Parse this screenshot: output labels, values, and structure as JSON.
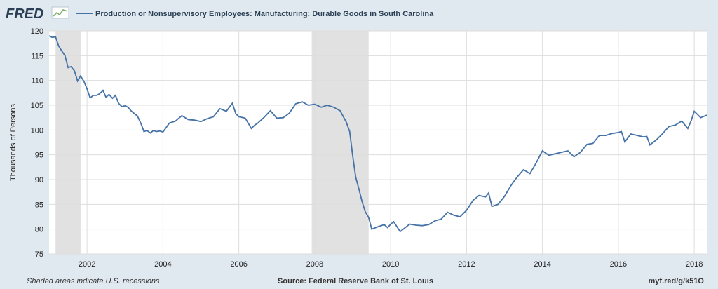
{
  "header": {
    "logo": "FRED",
    "series_title": "Production or Nonsupervisory Employees: Manufacturing: Durable Goods in South Carolina"
  },
  "colors": {
    "line": "#4572a7",
    "recession": "#e1e1e1",
    "background": "#e1e9f0",
    "plot_bg": "#ffffff",
    "grid": "#dddddd"
  },
  "footer": {
    "left": "Shaded areas indicate U.S. recessions",
    "center": "Source: Federal Reserve Bank of St. Louis",
    "right": "myf.red/g/k51O"
  },
  "chart_data": {
    "type": "line",
    "title": "Production or Nonsupervisory Employees: Manufacturing: Durable Goods in South Carolina",
    "xlabel": "",
    "ylabel": "Thousands of Persons",
    "xlim": [
      2001.0,
      2018.33
    ],
    "ylim": [
      75,
      120
    ],
    "yticks": [
      75,
      80,
      85,
      90,
      95,
      100,
      105,
      110,
      115,
      120
    ],
    "xticks": [
      2002,
      2004,
      2006,
      2008,
      2010,
      2012,
      2014,
      2016,
      2018
    ],
    "grid": true,
    "recessions": [
      [
        2001.17,
        2001.83
      ],
      [
        2007.92,
        2009.42
      ]
    ],
    "series": [
      {
        "x": [
          2001.0,
          2001.08,
          2001.17,
          2001.25,
          2001.33,
          2001.42,
          2001.5,
          2001.58,
          2001.67,
          2001.75,
          2001.83,
          2001.92,
          2002.0,
          2002.08,
          2002.17,
          2002.25,
          2002.33,
          2002.42,
          2002.5,
          2002.58,
          2002.67,
          2002.75,
          2002.83,
          2002.92,
          2003.0,
          2003.08,
          2003.17,
          2003.25,
          2003.33,
          2003.42,
          2003.5,
          2003.58,
          2003.67,
          2003.75,
          2003.83,
          2003.92,
          2004.0,
          2004.17,
          2004.33,
          2004.5,
          2004.67,
          2004.83,
          2005.0,
          2005.17,
          2005.33,
          2005.5,
          2005.67,
          2005.83,
          2005.92,
          2006.0,
          2006.17,
          2006.33,
          2006.42,
          2006.5,
          2006.67,
          2006.83,
          2007.0,
          2007.17,
          2007.33,
          2007.5,
          2007.67,
          2007.83,
          2008.0,
          2008.17,
          2008.33,
          2008.5,
          2008.67,
          2008.83,
          2008.92,
          2009.0,
          2009.08,
          2009.17,
          2009.25,
          2009.33,
          2009.42,
          2009.5,
          2009.67,
          2009.83,
          2009.92,
          2010.0,
          2010.08,
          2010.25,
          2010.5,
          2010.67,
          2010.83,
          2011.0,
          2011.17,
          2011.33,
          2011.5,
          2011.67,
          2011.83,
          2012.0,
          2012.17,
          2012.33,
          2012.5,
          2012.58,
          2012.67,
          2012.83,
          2013.0,
          2013.17,
          2013.33,
          2013.5,
          2013.67,
          2013.83,
          2014.0,
          2014.17,
          2014.33,
          2014.5,
          2014.67,
          2014.83,
          2015.0,
          2015.17,
          2015.33,
          2015.5,
          2015.67,
          2015.83,
          2016.0,
          2016.08,
          2016.17,
          2016.33,
          2016.5,
          2016.67,
          2016.75,
          2016.83,
          2017.0,
          2017.17,
          2017.33,
          2017.5,
          2017.67,
          2017.83,
          2017.92,
          2018.0,
          2018.17,
          2018.33
        ],
        "values": [
          119.0,
          118.7,
          118.8,
          117.0,
          116.0,
          115.0,
          112.6,
          112.8,
          111.9,
          109.9,
          110.9,
          109.8,
          108.3,
          106.5,
          107.0,
          107.0,
          107.3,
          108.0,
          106.6,
          107.2,
          106.4,
          107.0,
          105.4,
          104.7,
          104.9,
          104.6,
          103.8,
          103.3,
          102.8,
          101.3,
          99.7,
          99.9,
          99.4,
          99.9,
          99.7,
          99.8,
          99.6,
          101.4,
          101.8,
          102.9,
          102.1,
          102.0,
          101.7,
          102.3,
          102.7,
          104.3,
          103.8,
          105.4,
          103.3,
          102.7,
          102.4,
          100.3,
          101.0,
          101.4,
          102.6,
          103.9,
          102.4,
          102.5,
          103.4,
          105.3,
          105.7,
          105.0,
          105.2,
          104.6,
          105.0,
          104.6,
          103.9,
          101.6,
          99.7,
          94.8,
          90.5,
          87.9,
          85.5,
          83.5,
          82.4,
          80.0,
          80.5,
          80.9,
          80.3,
          81.0,
          81.5,
          79.5,
          81.0,
          80.8,
          80.7,
          80.9,
          81.7,
          82.0,
          83.4,
          82.8,
          82.5,
          83.8,
          85.8,
          86.8,
          86.5,
          87.3,
          84.6,
          85.0,
          86.6,
          88.8,
          90.5,
          92.0,
          91.2,
          93.3,
          95.8,
          94.9,
          95.2,
          95.5,
          95.8,
          94.6,
          95.5,
          97.1,
          97.3,
          98.9,
          98.9,
          99.3,
          99.5,
          99.7,
          97.6,
          99.2,
          98.9,
          98.6,
          98.7,
          97.0,
          98.0,
          99.3,
          100.7,
          101.0,
          101.8,
          100.3,
          101.9,
          103.8,
          102.5,
          103.0
        ]
      }
    ]
  }
}
